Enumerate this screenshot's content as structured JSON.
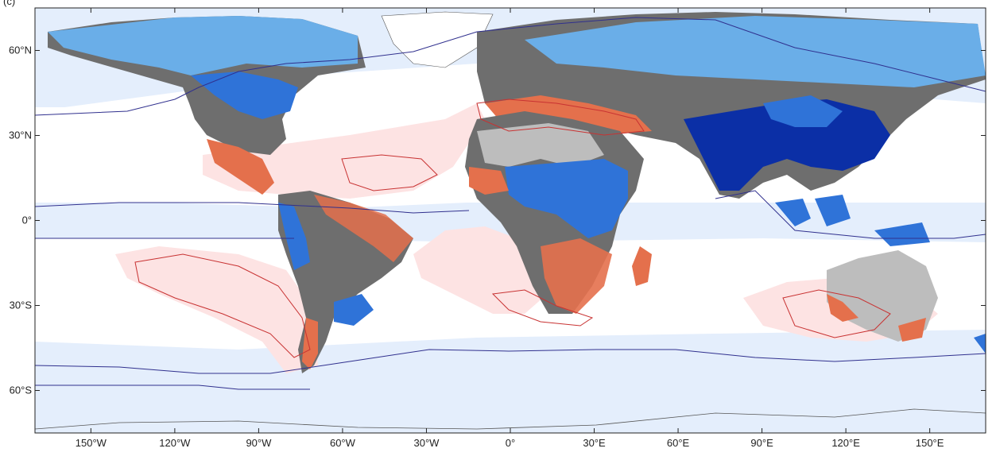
{
  "panel_label": "(c)",
  "map": {
    "projection": "equirectangular",
    "extent": {
      "lon": [
        -170,
        170
      ],
      "lat": [
        -75,
        75
      ]
    },
    "x_ticks": [
      {
        "lon": -150,
        "label": "150°W"
      },
      {
        "lon": -120,
        "label": "120°W"
      },
      {
        "lon": -90,
        "label": "90°W"
      },
      {
        "lon": -60,
        "label": "60°W"
      },
      {
        "lon": -30,
        "label": "30°W"
      },
      {
        "lon": 0,
        "label": "0°"
      },
      {
        "lon": 30,
        "label": "30°E"
      },
      {
        "lon": 60,
        "label": "60°E"
      },
      {
        "lon": 90,
        "label": "90°E"
      },
      {
        "lon": 120,
        "label": "120°E"
      },
      {
        "lon": 150,
        "label": "150°E"
      }
    ],
    "y_ticks": [
      {
        "lat": 60,
        "label": "60°N"
      },
      {
        "lat": 30,
        "label": "30°N"
      },
      {
        "lat": 0,
        "label": "0°"
      },
      {
        "lat": -30,
        "label": "30°S"
      },
      {
        "lat": -60,
        "label": "60°S"
      }
    ],
    "colors": {
      "ocean_wet": "#e4eefc",
      "ocean_dry": "#fde3e3",
      "land_neutral": "#6e6e6e",
      "land_light": "#bdbdbd",
      "land_wet_light": "#6aaee8",
      "land_wet": "#2f73d8",
      "land_wet_strong": "#0b2fa6",
      "land_dry": "#e4704c",
      "contour_wet": "#30308e",
      "contour_dry": "#c83232",
      "coast": "#555555"
    }
  }
}
